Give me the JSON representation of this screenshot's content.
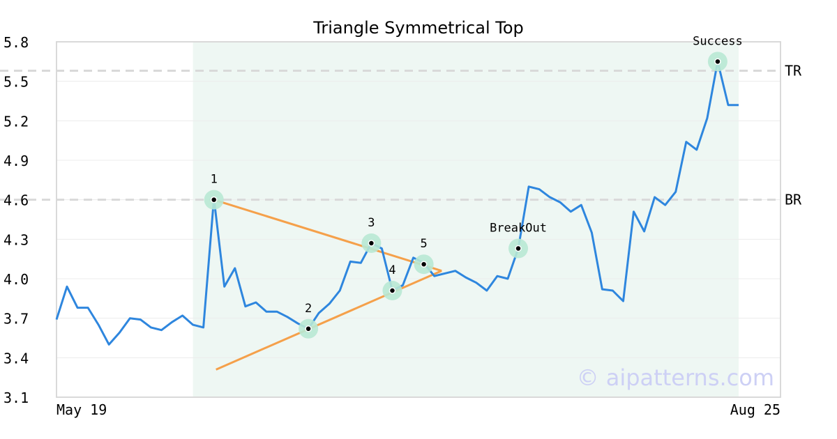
{
  "chart_data": {
    "type": "line",
    "title": "Triangle Symmetrical Top",
    "xlabel": "",
    "ylabel": "",
    "x_tick_labels": [
      "May 19",
      "Aug 25"
    ],
    "y_ticks": [
      "3.1",
      "3.4",
      "3.7",
      "4.0",
      "4.3",
      "4.6",
      "4.9",
      "5.2",
      "5.5",
      "5.8"
    ],
    "ylim": [
      3.1,
      5.8
    ],
    "grid": true,
    "colors": {
      "series": "#2e86de",
      "trendline": "#f5a04a",
      "marker_halo": "#b8e8d4",
      "marker_dot": "#000000",
      "pattern_band": "#eef7f3",
      "level_line": "#d9d9d9",
      "watermark": "#cdd0f5",
      "axis": "#d9d9d9"
    },
    "pattern_range": {
      "start_index": 13,
      "end_index": 64
    },
    "series": [
      {
        "values": [
          3.69,
          3.94,
          3.78,
          3.78,
          3.65,
          3.5,
          3.59,
          3.7,
          3.69,
          3.63,
          3.61,
          3.67,
          3.72,
          3.65,
          3.63,
          4.61,
          3.94,
          4.08,
          3.79,
          3.82,
          3.75,
          3.75,
          3.71,
          3.66,
          3.62,
          3.74,
          3.81,
          3.91,
          4.13,
          4.12,
          4.27,
          4.23,
          3.91,
          3.95,
          4.16,
          4.12,
          4.02,
          4.04,
          4.06,
          4.01,
          3.97,
          3.91,
          4.02,
          4.0,
          4.23,
          4.7,
          4.68,
          4.62,
          4.58,
          4.51,
          4.56,
          4.35,
          3.92,
          3.91,
          3.83,
          4.51,
          4.36,
          4.62,
          4.56,
          4.66,
          5.04,
          4.98,
          5.22,
          5.65,
          5.32,
          5.32
        ]
      }
    ],
    "trendlines": [
      {
        "from": [
          15,
          4.6
        ],
        "to": [
          36.7,
          4.06
        ]
      },
      {
        "from": [
          15.2,
          3.31
        ],
        "to": [
          36.7,
          4.06
        ]
      }
    ],
    "levels": [
      {
        "label": "TR",
        "y": 5.58
      },
      {
        "label": "BR",
        "y": 4.6
      }
    ],
    "points": [
      {
        "label": "1",
        "x": 15,
        "y": 4.6
      },
      {
        "label": "2",
        "x": 24,
        "y": 3.62
      },
      {
        "label": "3",
        "x": 30,
        "y": 4.27
      },
      {
        "label": "4",
        "x": 32,
        "y": 3.91
      },
      {
        "label": "5",
        "x": 35,
        "y": 4.11
      },
      {
        "label": "BreakOut",
        "x": 44,
        "y": 4.23
      },
      {
        "label": "Success",
        "x": 63,
        "y": 5.65
      }
    ],
    "watermark": "© aipatterns.com"
  }
}
